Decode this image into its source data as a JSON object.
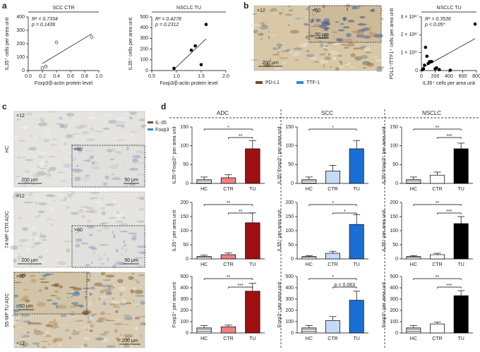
{
  "panel_labels": [
    "a",
    "b",
    "c",
    "d"
  ],
  "micrographs": {
    "b": {
      "low_mag": "×12",
      "high_mag": "×60",
      "scale_low": "200 µm",
      "scale_high": "50 µm",
      "legend": [
        {
          "name": "PD-L1",
          "color": "#7a4b22"
        },
        {
          "name": "TTF-1",
          "color": "#2a8fc8"
        }
      ]
    },
    "c": {
      "legend": [
        {
          "name": "IL-35",
          "color": "#7a4b22"
        },
        {
          "name": "Foxp3",
          "color": "#2a8fc8"
        }
      ],
      "rows": [
        {
          "label": "HC",
          "low_mag": "×12",
          "high_mag": "×60",
          "scale_low": "200 µm",
          "scale_high": "50 µm"
        },
        {
          "label": "74-MP CTR ADC",
          "low_mag": "×12",
          "high_mag": "×60",
          "scale_low": "200 µm",
          "scale_high": "50 µm"
        },
        {
          "label": "55-MP TU ADC",
          "low_mag": "×12",
          "high_mag": "×60",
          "scale_low": "200 µm",
          "scale_high": "50 µm"
        }
      ]
    }
  },
  "panel_d": {
    "columns": [
      "ADC",
      "SCC",
      "NSCLC"
    ]
  },
  "chart_data": [
    {
      "type": "scatter",
      "title": "SCC CTR",
      "xlabel": "Foxp3/β-actin protein level",
      "ylabel": "IL35⁺ cells per area unit",
      "annotations": [
        "R² = 0.7334",
        "p = 0.1436"
      ],
      "marker_fill": "#ffffff",
      "x": [
        0.2,
        0.25,
        0.4,
        0.9
      ],
      "y": [
        20,
        30,
        210,
        250
      ],
      "xlim": [
        0,
        1.0
      ],
      "xticks": [
        {
          "value": 0,
          "label": "0.0"
        },
        0.2,
        0.4,
        0.6,
        0.8,
        {
          "value": 1,
          "label": "1.0"
        }
      ],
      "ylim": [
        0,
        400
      ],
      "yticks": [
        0,
        100,
        200,
        300,
        400
      ]
    },
    {
      "type": "scatter",
      "title": "NSCLC TU",
      "xlabel": "Foxp3/β-actin protein level",
      "ylabel": "IL35⁺ cells per area unit",
      "annotations": [
        "R² = 0.4278",
        "p = 0.2312"
      ],
      "marker_fill": "#000000",
      "x": [
        0.95,
        1.3,
        1.38,
        1.5,
        1.6
      ],
      "y": [
        20,
        190,
        230,
        55,
        430
      ],
      "xlim": [
        0.5,
        2.0
      ],
      "xticks": [
        0.5,
        {
          "value": 1,
          "label": "1.0"
        },
        1.5,
        {
          "value": 2,
          "label": "2.0"
        }
      ],
      "ylim": [
        0,
        500
      ],
      "yticks": [
        0,
        100,
        200,
        300,
        400,
        500
      ]
    },
    {
      "type": "scatter",
      "title": "NSCLC TU",
      "xlabel": "IL35⁺ cells per area unit",
      "ylabel": "PDL1⁺/TTF1⁺ cells per area unit",
      "annotations": [
        "R² = 0.3536",
        "p < 0.05*"
      ],
      "marker_fill": "#000000",
      "x": [
        15,
        30,
        45,
        60,
        80,
        100,
        120,
        150,
        200,
        220,
        260,
        420,
        780
      ],
      "y": [
        5e+25,
        1e+26,
        3e+26,
        1.3e+27,
        8e+26,
        4e+26,
        5e+26,
        5e+26,
        1e+26,
        1.5e+26,
        5e+25,
        2e+25,
        2.6e+27
      ],
      "xlim": [
        0,
        800
      ],
      "xticks": [
        0,
        200,
        400,
        600,
        800
      ],
      "ylim": [
        0,
        3e+27
      ],
      "yticks": [
        0,
        {
          "value": 1e+27,
          "label": "1 × 10²⁷"
        },
        {
          "value": 2e+27,
          "label": "2 × 10²⁷"
        },
        {
          "value": 3e+27,
          "label": "3 × 10²⁷"
        }
      ]
    },
    {
      "type": "bar",
      "ylabel": "IL35⁺Foxp3⁺ per area unit",
      "categories": [
        "HC",
        "CTR",
        "TU"
      ],
      "values": [
        10,
        15,
        92
      ],
      "errors": [
        7,
        8,
        22
      ],
      "colors": [
        "#ffffff",
        "#f08080",
        "#a01010"
      ],
      "hatch": [
        true,
        false,
        false
      ],
      "ylim": [
        0,
        150
      ],
      "yticks": [
        0,
        50,
        100,
        150
      ],
      "brackets": [
        {
          "from": "HC",
          "to": "TU",
          "label": "*"
        },
        {
          "from": "CTR",
          "to": "TU",
          "label": "**"
        }
      ]
    },
    {
      "type": "bar",
      "ylabel": "IL35⁺Foxp3⁺ per area unit",
      "categories": [
        "HC",
        "CTR",
        "TU"
      ],
      "values": [
        10,
        33,
        92
      ],
      "errors": [
        7,
        15,
        22
      ],
      "colors": [
        "#ffffff",
        "#c5daf5",
        "#1a6fd6"
      ],
      "hatch": [
        true,
        false,
        false
      ],
      "ylim": [
        0,
        150
      ],
      "yticks": [
        0,
        50,
        100,
        150
      ],
      "brackets": [
        {
          "from": "HC",
          "to": "TU",
          "label": "*"
        }
      ]
    },
    {
      "type": "bar",
      "ylabel": "IL35⁺Foxp3⁺ per area unit",
      "categories": [
        "HC",
        "CTR",
        "TU"
      ],
      "values": [
        10,
        22,
        92
      ],
      "errors": [
        7,
        8,
        15
      ],
      "colors": [
        "#ffffff",
        "#ffffff",
        "#000000"
      ],
      "hatch": [
        true,
        false,
        false
      ],
      "ylim": [
        0,
        150
      ],
      "yticks": [
        0,
        50,
        100,
        150
      ],
      "brackets": [
        {
          "from": "HC",
          "to": "TU",
          "label": "**"
        },
        {
          "from": "CTR",
          "to": "TU",
          "label": "***"
        }
      ]
    },
    {
      "type": "bar",
      "ylabel": "IL35⁺ per area unit",
      "categories": [
        "HC",
        "CTR",
        "TU"
      ],
      "values": [
        8,
        15,
        128
      ],
      "errors": [
        5,
        6,
        35
      ],
      "colors": [
        "#ffffff",
        "#f08080",
        "#a01010"
      ],
      "hatch": [
        true,
        false,
        false
      ],
      "ylim": [
        0,
        200
      ],
      "yticks": [
        0,
        50,
        100,
        150,
        200
      ],
      "brackets": [
        {
          "from": "HC",
          "to": "TU",
          "label": "**"
        },
        {
          "from": "CTR",
          "to": "TU",
          "label": "**"
        }
      ]
    },
    {
      "type": "bar",
      "ylabel": "IL35⁺ per area unit",
      "categories": [
        "HC",
        "CTR",
        "TU"
      ],
      "values": [
        8,
        20,
        122
      ],
      "errors": [
        4,
        7,
        35
      ],
      "colors": [
        "#ffffff",
        "#c5daf5",
        "#1a6fd6"
      ],
      "hatch": [
        true,
        false,
        false
      ],
      "ylim": [
        0,
        200
      ],
      "yticks": [
        0,
        50,
        100,
        150,
        200
      ],
      "brackets": [
        {
          "from": "HC",
          "to": "TU",
          "label": "*"
        },
        {
          "from": "CTR",
          "to": "TU",
          "label": "*"
        }
      ]
    },
    {
      "type": "bar",
      "ylabel": "IL35⁺ per area unit",
      "categories": [
        "HC",
        "CTR",
        "TU"
      ],
      "values": [
        8,
        15,
        125
      ],
      "errors": [
        4,
        5,
        25
      ],
      "colors": [
        "#ffffff",
        "#ffffff",
        "#000000"
      ],
      "hatch": [
        true,
        false,
        false
      ],
      "ylim": [
        0,
        200
      ],
      "yticks": [
        0,
        50,
        100,
        150,
        200
      ],
      "brackets": [
        {
          "from": "HC",
          "to": "TU",
          "label": "**"
        },
        {
          "from": "CTR",
          "to": "TU",
          "label": "***"
        }
      ]
    },
    {
      "type": "bar",
      "ylabel": "Foxp3⁺ per area unit",
      "categories": [
        "HC",
        "CTR",
        "TU"
      ],
      "values": [
        45,
        55,
        370
      ],
      "errors": [
        20,
        15,
        70
      ],
      "colors": [
        "#ffffff",
        "#f08080",
        "#a01010"
      ],
      "hatch": [
        true,
        false,
        false
      ],
      "ylim": [
        0,
        500
      ],
      "yticks": [
        0,
        100,
        200,
        300,
        400,
        500
      ],
      "brackets": [
        {
          "from": "HC",
          "to": "TU",
          "label": "**"
        },
        {
          "from": "CTR",
          "to": "TU",
          "label": "***"
        }
      ]
    },
    {
      "type": "bar",
      "ylabel": "Foxp3⁺ per area unit",
      "categories": [
        "HC",
        "CTR",
        "TU"
      ],
      "values": [
        45,
        110,
        290
      ],
      "errors": [
        20,
        35,
        80
      ],
      "colors": [
        "#ffffff",
        "#c5daf5",
        "#1a6fd6"
      ],
      "hatch": [
        true,
        false,
        false
      ],
      "ylim": [
        0,
        500
      ],
      "yticks": [
        0,
        100,
        200,
        300,
        400,
        500
      ],
      "brackets": [
        {
          "from": "HC",
          "to": "TU",
          "label": "*"
        },
        {
          "from": "CTR",
          "to": "TU",
          "label": "p = 0.063"
        }
      ]
    },
    {
      "type": "bar",
      "ylabel": "Foxp3⁺ per area unit",
      "categories": [
        "HC",
        "CTR",
        "TU"
      ],
      "values": [
        45,
        80,
        330
      ],
      "errors": [
        20,
        15,
        45
      ],
      "colors": [
        "#ffffff",
        "#ffffff",
        "#000000"
      ],
      "hatch": [
        true,
        false,
        false
      ],
      "ylim": [
        0,
        500
      ],
      "yticks": [
        0,
        100,
        200,
        300,
        400,
        500
      ],
      "brackets": [
        {
          "from": "HC",
          "to": "TU",
          "label": "**"
        },
        {
          "from": "CTR",
          "to": "TU",
          "label": "***"
        }
      ]
    }
  ]
}
